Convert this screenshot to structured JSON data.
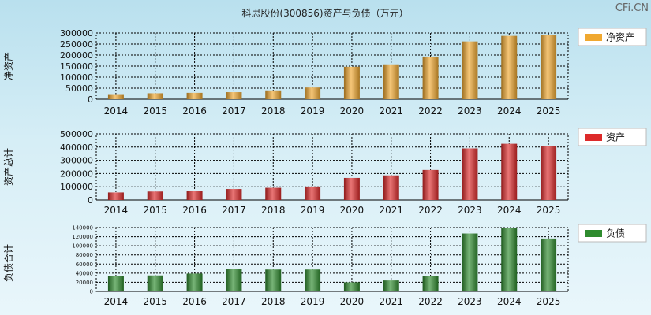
{
  "header": {
    "title": "科思股份(300856)资产与负债（万元）",
    "watermark": "CFi.CN"
  },
  "chart_data": [
    {
      "type": "bar",
      "ylabel": "净资产",
      "legend": "净资产",
      "color": "#f0a830",
      "categories": [
        "2014",
        "2015",
        "2016",
        "2017",
        "2018",
        "2019",
        "2020",
        "2021",
        "2022",
        "2023",
        "2024",
        "2025"
      ],
      "values": [
        23000,
        27000,
        29000,
        32000,
        40000,
        53000,
        147000,
        158000,
        193000,
        262000,
        287000,
        290000
      ],
      "ylim": [
        0,
        300000
      ],
      "yticks": [
        "0",
        "50000",
        "100000",
        "150000",
        "200000",
        "250000",
        "300000"
      ]
    },
    {
      "type": "bar",
      "ylabel": "资产总计",
      "legend": "资产",
      "color": "#dd2a2a",
      "categories": [
        "2014",
        "2015",
        "2016",
        "2017",
        "2018",
        "2019",
        "2020",
        "2021",
        "2022",
        "2023",
        "2024",
        "2025"
      ],
      "values": [
        57000,
        64000,
        67000,
        83000,
        92000,
        102000,
        167000,
        186000,
        227000,
        390000,
        425000,
        407000
      ],
      "ylim": [
        0,
        500000
      ],
      "yticks": [
        "0",
        "100000",
        "200000",
        "300000",
        "400000",
        "500000"
      ]
    },
    {
      "type": "bar",
      "ylabel": "负债合计",
      "legend": "负债",
      "color": "#2e8b2e",
      "categories": [
        "2014",
        "2015",
        "2016",
        "2017",
        "2018",
        "2019",
        "2020",
        "2021",
        "2022",
        "2023",
        "2024",
        "2025"
      ],
      "values": [
        33000,
        35000,
        39000,
        50000,
        48000,
        48000,
        20000,
        24000,
        33000,
        127000,
        139000,
        116000
      ],
      "ylim": [
        0,
        140000
      ],
      "yticks": [
        "0",
        "20000",
        "40000",
        "60000",
        "80000",
        "100000",
        "120000",
        "140000"
      ]
    }
  ]
}
